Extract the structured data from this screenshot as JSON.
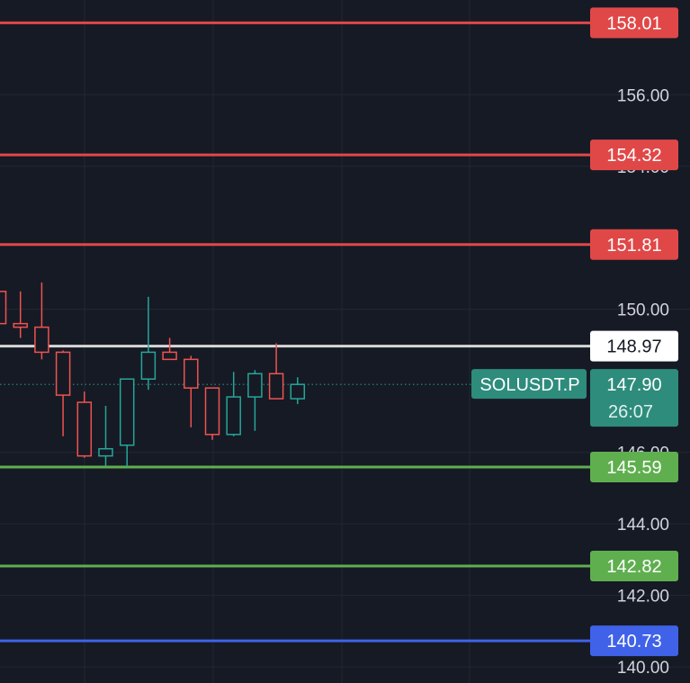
{
  "chart_data": {
    "type": "candlestick",
    "ylim": [
      139.55,
      158.65
    ],
    "y_ticks": [
      "156.00",
      "154.00",
      "150.00",
      "146.00",
      "144.00",
      "142.00",
      "140.00"
    ],
    "grid": true,
    "colors": {
      "background": "#161a25",
      "grid": "#232734",
      "up": "#26a69a",
      "down": "#ef5350",
      "resistance": "#e04848",
      "support": "#5faf4f",
      "blue_level": "#3f62e8",
      "white_level": "#d7d7d7"
    },
    "horizontal_levels": [
      {
        "label": "158.01",
        "value": 158.01,
        "color": "#e04848",
        "text_color": "#ffffff"
      },
      {
        "label": "154.32",
        "value": 154.32,
        "color": "#e04848",
        "text_color": "#ffffff"
      },
      {
        "label": "151.81",
        "value": 151.81,
        "color": "#e04848",
        "text_color": "#ffffff"
      },
      {
        "label": "148.97",
        "value": 148.97,
        "color": "#d7d7d7",
        "badge": "#ffffff",
        "text_color": "#131722"
      },
      {
        "label": "145.59",
        "value": 145.59,
        "color": "#5faf4f",
        "text_color": "#ffffff"
      },
      {
        "label": "142.82",
        "value": 142.82,
        "color": "#5faf4f",
        "text_color": "#ffffff"
      },
      {
        "label": "140.73",
        "value": 140.73,
        "color": "#3f62e8",
        "text_color": "#ffffff"
      }
    ],
    "current_price": {
      "symbol": "SOLUSDT.P",
      "price": "147.90",
      "value": 147.9,
      "countdown": "26:07",
      "color": "#2e8c7c"
    },
    "candles": [
      {
        "open": 150.5,
        "high": 150.5,
        "low": 149.6,
        "close": 149.6
      },
      {
        "open": 149.6,
        "high": 150.5,
        "low": 149.2,
        "close": 149.5
      },
      {
        "open": 149.5,
        "high": 150.75,
        "low": 148.6,
        "close": 148.8
      },
      {
        "open": 148.8,
        "high": 148.85,
        "low": 146.45,
        "close": 147.6
      },
      {
        "open": 147.4,
        "high": 147.7,
        "low": 145.85,
        "close": 145.9
      },
      {
        "open": 145.9,
        "high": 147.3,
        "low": 145.6,
        "close": 146.1
      },
      {
        "open": 146.2,
        "high": 148.05,
        "low": 145.6,
        "close": 148.05
      },
      {
        "open": 148.05,
        "high": 150.35,
        "low": 147.75,
        "close": 148.8
      },
      {
        "open": 148.8,
        "high": 149.2,
        "low": 148.6,
        "close": 148.6
      },
      {
        "open": 148.6,
        "high": 148.7,
        "low": 146.7,
        "close": 147.8
      },
      {
        "open": 147.8,
        "high": 147.8,
        "low": 146.35,
        "close": 146.5
      },
      {
        "open": 146.5,
        "high": 148.25,
        "low": 146.45,
        "close": 147.55
      },
      {
        "open": 147.55,
        "high": 148.3,
        "low": 146.6,
        "close": 148.2
      },
      {
        "open": 148.2,
        "high": 149.05,
        "low": 147.5,
        "close": 147.5
      },
      {
        "open": 147.5,
        "high": 148.1,
        "low": 147.35,
        "close": 147.9
      }
    ]
  }
}
